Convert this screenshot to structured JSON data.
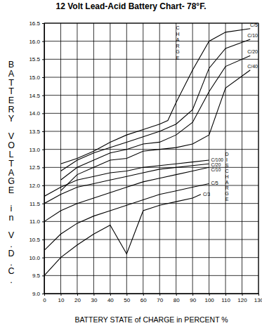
{
  "chart_data": {
    "type": "line",
    "title": "12 Volt Lead-Acid Battery Chart- 78°F.",
    "x_label": "BATTERY STATE of CHARGE in PERCENT %",
    "y_label": "BATTERY VOLTAGE in V.D.C.",
    "annotations": [
      "CHARGE",
      "DISCHARGE"
    ],
    "xlim": [
      0,
      130
    ],
    "xticks": [
      0,
      10,
      20,
      30,
      40,
      50,
      60,
      70,
      80,
      90,
      100,
      110,
      120,
      130
    ],
    "ylim": [
      9,
      16.5
    ],
    "yticks": [
      {
        "value": 9,
        "label": "9.0"
      },
      9.5,
      {
        "value": 10,
        "label": "10.0"
      },
      10.5,
      {
        "value": 11,
        "label": "11.0"
      },
      11.5,
      {
        "value": 12,
        "label": "12.0"
      },
      12.5,
      {
        "value": 13,
        "label": "13.0"
      },
      13.5,
      {
        "value": 14,
        "label": "14.0"
      },
      14.5,
      {
        "value": 15,
        "label": "15.0"
      },
      15.5,
      {
        "value": 16,
        "label": "16.0"
      },
      16.5
    ],
    "grid": true,
    "series": [
      {
        "name": "C/5",
        "color": "#000000",
        "x": [
          10,
          20,
          30,
          40,
          50,
          60,
          70,
          75,
          80,
          90,
          100,
          110,
          125
        ],
        "values": [
          12.6,
          12.75,
          12.95,
          13.2,
          13.4,
          13.55,
          13.7,
          13.8,
          14.3,
          15.2,
          16.0,
          16.25,
          16.35
        ]
      },
      {
        "name": "C/10",
        "color": "#000000",
        "x": [
          10,
          20,
          30,
          40,
          50,
          60,
          70,
          80,
          90,
          100,
          110,
          125
        ],
        "values": [
          12.4,
          12.7,
          12.9,
          13.05,
          13.2,
          13.35,
          13.5,
          13.7,
          14.1,
          15.25,
          15.8,
          16.05
        ]
      },
      {
        "name": "C/20",
        "color": "#000000",
        "x": [
          10,
          20,
          30,
          40,
          50,
          60,
          70,
          80,
          90,
          100,
          110,
          125
        ],
        "values": [
          12.15,
          12.5,
          12.7,
          12.9,
          13.0,
          13.15,
          13.2,
          13.4,
          13.75,
          14.6,
          15.3,
          15.6
        ]
      },
      {
        "name": "C/40",
        "color": "#000000",
        "x": [
          10,
          20,
          30,
          40,
          50,
          60,
          70,
          80,
          90,
          100,
          110,
          125
        ],
        "values": [
          11.85,
          12.3,
          12.5,
          12.7,
          12.75,
          12.95,
          13.0,
          13.05,
          13.15,
          13.4,
          14.7,
          15.2
        ]
      },
      {
        "name": "C/100",
        "color": "#000000",
        "x": [
          0,
          10,
          20,
          30,
          40,
          50,
          60,
          70,
          80,
          90,
          100
        ],
        "values": [
          11.7,
          11.95,
          12.15,
          12.25,
          12.35,
          12.4,
          12.5,
          12.55,
          12.6,
          12.65,
          12.7
        ]
      },
      {
        "name": "C/20",
        "color": "#000000",
        "x": [
          0,
          10,
          20,
          30,
          40,
          50,
          60,
          70,
          80,
          90,
          100
        ],
        "values": [
          11.5,
          11.75,
          11.95,
          12.05,
          12.15,
          12.25,
          12.35,
          12.45,
          12.5,
          12.55,
          12.6
        ]
      },
      {
        "name": "C/10",
        "color": "#000000",
        "x": [
          0,
          10,
          20,
          30,
          40,
          50,
          60,
          70,
          80,
          90,
          100
        ],
        "values": [
          11.0,
          11.3,
          11.5,
          11.65,
          11.8,
          11.95,
          12.1,
          12.2,
          12.3,
          12.4,
          12.5
        ]
      },
      {
        "name": "C/5",
        "color": "#000000",
        "x": [
          0,
          10,
          20,
          30,
          40,
          50,
          60,
          70,
          80,
          90,
          100
        ],
        "values": [
          10.2,
          10.65,
          10.95,
          11.15,
          11.3,
          11.45,
          11.6,
          11.75,
          11.85,
          11.95,
          12.05
        ]
      },
      {
        "name": "C/3",
        "color": "#000000",
        "x": [
          0,
          10,
          20,
          30,
          40,
          50,
          60,
          70,
          80,
          90,
          95
        ],
        "values": [
          9.5,
          10.0,
          10.35,
          10.65,
          10.9,
          10.1,
          11.3,
          11.45,
          11.55,
          11.65,
          11.75
        ]
      }
    ]
  }
}
